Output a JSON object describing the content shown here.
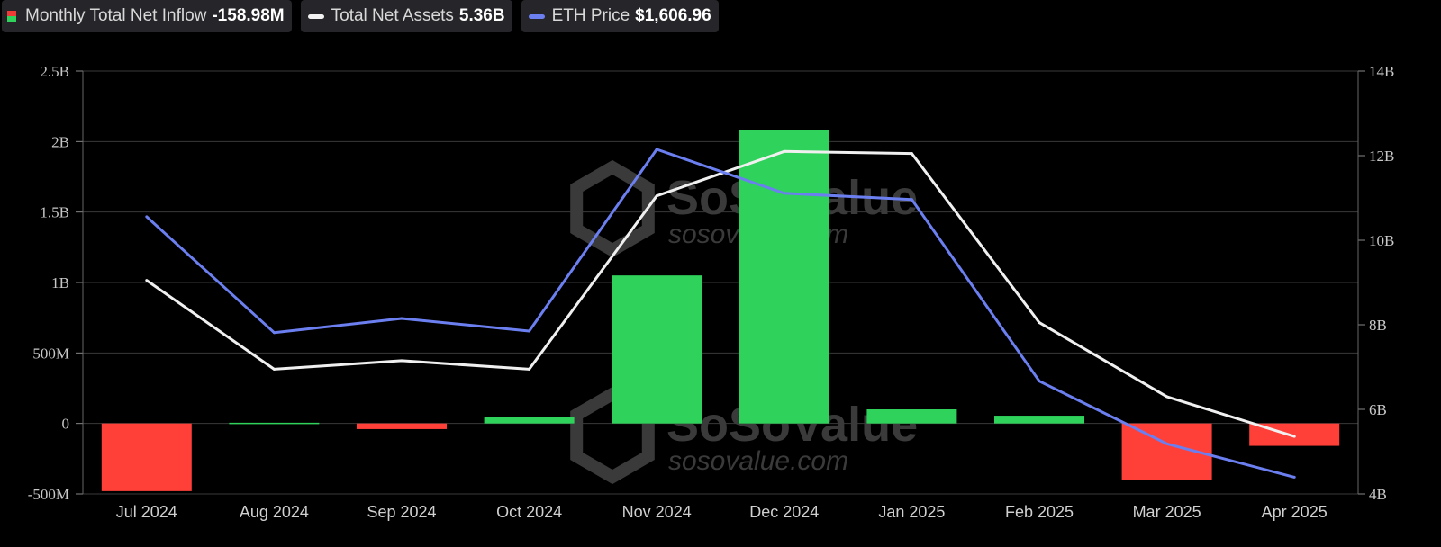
{
  "legend": [
    {
      "label": "Monthly Total Net Inflow",
      "value": "-158.98M",
      "swatch": "bars"
    },
    {
      "label": "Total Net Assets",
      "value": "5.36B",
      "swatch": "#f2f2f2"
    },
    {
      "label": "ETH Price",
      "value": "$1,606.96",
      "swatch": "#6b7ff0"
    }
  ],
  "watermark": {
    "brand": "SoSoValue",
    "url": "sosovalue.com"
  },
  "colors": {
    "positive": "#2fd25a",
    "negative": "#ff4038",
    "assets_line": "#f0f0f0",
    "price_line": "#6b7ff0",
    "grid": "#3a3a3a",
    "background": "#000000"
  },
  "chart_data": {
    "type": "bar",
    "categories": [
      "Jul 2024",
      "Aug 2024",
      "Sep 2024",
      "Oct 2024",
      "Nov 2024",
      "Dec 2024",
      "Jan 2025",
      "Feb 2025",
      "Mar 2025",
      "Apr 2025"
    ],
    "series": [
      {
        "name": "Monthly Total Net Inflow",
        "type": "bar",
        "axis": "left",
        "values": [
          -480000000,
          5000000,
          -40000000,
          45000000,
          1050000000,
          2080000000,
          100000000,
          55000000,
          -400000000,
          -158980000
        ]
      },
      {
        "name": "Total Net Assets",
        "type": "line",
        "axis": "right",
        "values": [
          9050000000.0,
          6950000000.0,
          7150000000.0,
          6950000000.0,
          11050000000.0,
          12100000000.0,
          12050000000.0,
          8050000000.0,
          6300000000.0,
          5360000000.0
        ]
      }
    ],
    "price_series": {
      "name": "ETH Price",
      "type": "line",
      "values": [
        3270,
        2530,
        2620,
        2540,
        3700,
        3420,
        3380,
        2220,
        1820,
        1606.96
      ],
      "plot_range": [
        1500,
        4200
      ]
    },
    "y_left": {
      "ticks": [
        "-500M",
        "0",
        "500M",
        "1B",
        "1.5B",
        "2B",
        "2.5B"
      ],
      "tick_values": [
        -500000000,
        0,
        500000000,
        1000000000,
        1500000000,
        2000000000,
        2500000000
      ],
      "ylim": [
        -500000000,
        2500000000
      ]
    },
    "y_right": {
      "ticks": [
        "4B",
        "6B",
        "8B",
        "10B",
        "12B",
        "14B"
      ],
      "tick_values": [
        4000000000.0,
        6000000000.0,
        8000000000.0,
        10000000000.0,
        12000000000.0,
        14000000000.0
      ],
      "ylim": [
        4000000000.0,
        14000000000.0
      ]
    },
    "grid": true,
    "legend_position": "top-left"
  }
}
